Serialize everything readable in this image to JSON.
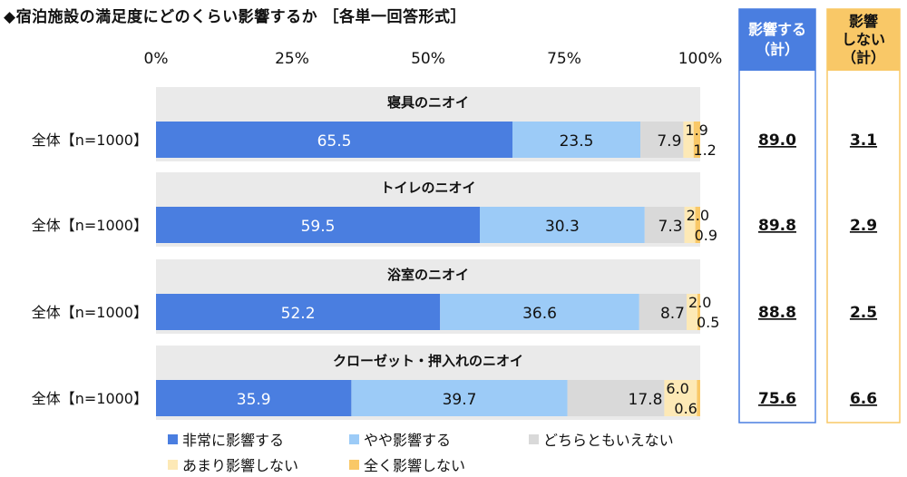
{
  "title": "◆宿泊施設の満足度にどのくらい影響するか ［各単一回答形式］",
  "colors": {
    "very": "#4a7ee0",
    "some": "#9ccbf7",
    "neutral": "#d9d9d9",
    "little": "#fde9b6",
    "none": "#f9c867",
    "group_bg": "#eaeaea",
    "sum_border_blue": "#4a7ee0",
    "sum_border_yellow": "#f9c867"
  },
  "summary": {
    "affect_header_line1": "影響する",
    "affect_header_line2": "（計）",
    "noaffect_header_line1": "影響",
    "noaffect_header_line2": "しない",
    "noaffect_header_line3": "（計）"
  },
  "chart_data": {
    "type": "bar",
    "orientation": "horizontal-stacked-100",
    "xlim": [
      0,
      100
    ],
    "ticks": [
      "0%",
      "25%",
      "50%",
      "75%",
      "100%"
    ],
    "series_names": [
      "非常に影響する",
      "やや影響する",
      "どちらともいえない",
      "あまり影響しない",
      "全く影響しない"
    ],
    "groups": [
      {
        "title": "寝具のニオイ",
        "row_label": "全体【n=1000】",
        "values": [
          65.5,
          23.5,
          7.9,
          1.9,
          1.2
        ],
        "affect_total": "89.0",
        "noaffect_total": "3.1"
      },
      {
        "title": "トイレのニオイ",
        "row_label": "全体【n=1000】",
        "values": [
          59.5,
          30.3,
          7.3,
          2.0,
          0.9
        ],
        "affect_total": "89.8",
        "noaffect_total": "2.9"
      },
      {
        "title": "浴室のニオイ",
        "row_label": "全体【n=1000】",
        "values": [
          52.2,
          36.6,
          8.7,
          2.0,
          0.5
        ],
        "affect_total": "88.8",
        "noaffect_total": "2.5"
      },
      {
        "title": "クローゼット・押入れのニオイ",
        "row_label": "全体【n=1000】",
        "values": [
          35.9,
          39.7,
          17.8,
          6.0,
          0.6
        ],
        "affect_total": "75.6",
        "noaffect_total": "6.6"
      }
    ]
  },
  "legend": [
    {
      "label": "非常に影響する",
      "color": "#4a7ee0"
    },
    {
      "label": "やや影響する",
      "color": "#9ccbf7"
    },
    {
      "label": "どちらともいえない",
      "color": "#d9d9d9"
    },
    {
      "label": "あまり影響しない",
      "color": "#fde9b6"
    },
    {
      "label": "全く影響しない",
      "color": "#f9c867"
    }
  ]
}
